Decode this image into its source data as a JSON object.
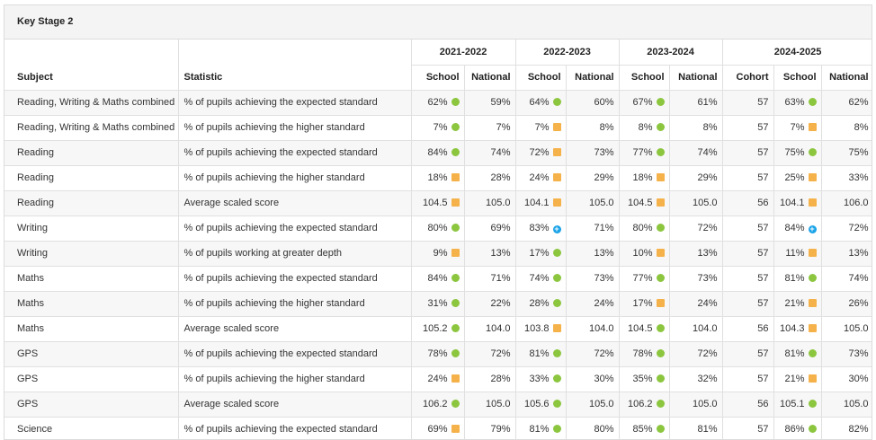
{
  "title": "Key Stage 2",
  "headers": {
    "subject": "Subject",
    "statistic": "Statistic",
    "years": [
      "2021-2022",
      "2022-2023",
      "2023-2024",
      "2024-2025"
    ],
    "school": "School",
    "national": "National",
    "cohort": "Cohort"
  },
  "indicator_colors": {
    "green": "#8cc63f",
    "orange": "#f6b24a",
    "blue": "#1aa3e8"
  },
  "rows": [
    {
      "subject": "Reading, Writing & Maths combined",
      "statistic": "% of pupils achieving the expected standard",
      "y1": {
        "school": "62%",
        "ind": "green",
        "national": "59%"
      },
      "y2": {
        "school": "64%",
        "ind": "green",
        "national": "60%"
      },
      "y3": {
        "school": "67%",
        "ind": "green",
        "national": "61%"
      },
      "y4": {
        "cohort": "57",
        "school": "63%",
        "ind": "green",
        "national": "62%"
      }
    },
    {
      "subject": "Reading, Writing & Maths combined",
      "statistic": "% of pupils achieving the higher standard",
      "y1": {
        "school": "7%",
        "ind": "green",
        "national": "7%"
      },
      "y2": {
        "school": "7%",
        "ind": "orange",
        "national": "8%"
      },
      "y3": {
        "school": "8%",
        "ind": "green",
        "national": "8%"
      },
      "y4": {
        "cohort": "57",
        "school": "7%",
        "ind": "orange",
        "national": "8%"
      }
    },
    {
      "subject": "Reading",
      "statistic": "% of pupils achieving the expected standard",
      "y1": {
        "school": "84%",
        "ind": "green",
        "national": "74%"
      },
      "y2": {
        "school": "72%",
        "ind": "orange",
        "national": "73%"
      },
      "y3": {
        "school": "77%",
        "ind": "green",
        "national": "74%"
      },
      "y4": {
        "cohort": "57",
        "school": "75%",
        "ind": "green",
        "national": "75%"
      }
    },
    {
      "subject": "Reading",
      "statistic": "% of pupils achieving the higher standard",
      "y1": {
        "school": "18%",
        "ind": "orange",
        "national": "28%"
      },
      "y2": {
        "school": "24%",
        "ind": "orange",
        "national": "29%"
      },
      "y3": {
        "school": "18%",
        "ind": "orange",
        "national": "29%"
      },
      "y4": {
        "cohort": "57",
        "school": "25%",
        "ind": "orange",
        "national": "33%"
      }
    },
    {
      "subject": "Reading",
      "statistic": "Average scaled score",
      "y1": {
        "school": "104.5",
        "ind": "orange",
        "national": "105.0"
      },
      "y2": {
        "school": "104.1",
        "ind": "orange",
        "national": "105.0"
      },
      "y3": {
        "school": "104.5",
        "ind": "orange",
        "national": "105.0"
      },
      "y4": {
        "cohort": "56",
        "school": "104.1",
        "ind": "orange",
        "national": "106.0"
      }
    },
    {
      "subject": "Writing",
      "statistic": "% of pupils achieving the expected standard",
      "y1": {
        "school": "80%",
        "ind": "green",
        "national": "69%"
      },
      "y2": {
        "school": "83%",
        "ind": "blue",
        "national": "71%"
      },
      "y3": {
        "school": "80%",
        "ind": "green",
        "national": "72%"
      },
      "y4": {
        "cohort": "57",
        "school": "84%",
        "ind": "blue",
        "national": "72%"
      }
    },
    {
      "subject": "Writing",
      "statistic": "% of pupils working at greater depth",
      "y1": {
        "school": "9%",
        "ind": "orange",
        "national": "13%"
      },
      "y2": {
        "school": "17%",
        "ind": "green",
        "national": "13%"
      },
      "y3": {
        "school": "10%",
        "ind": "orange",
        "national": "13%"
      },
      "y4": {
        "cohort": "57",
        "school": "11%",
        "ind": "orange",
        "national": "13%"
      }
    },
    {
      "subject": "Maths",
      "statistic": "% of pupils achieving the expected standard",
      "y1": {
        "school": "84%",
        "ind": "green",
        "national": "71%"
      },
      "y2": {
        "school": "74%",
        "ind": "green",
        "national": "73%"
      },
      "y3": {
        "school": "77%",
        "ind": "green",
        "national": "73%"
      },
      "y4": {
        "cohort": "57",
        "school": "81%",
        "ind": "green",
        "national": "74%"
      }
    },
    {
      "subject": "Maths",
      "statistic": "% of pupils achieving the higher standard",
      "y1": {
        "school": "31%",
        "ind": "green",
        "national": "22%"
      },
      "y2": {
        "school": "28%",
        "ind": "green",
        "national": "24%"
      },
      "y3": {
        "school": "17%",
        "ind": "orange",
        "national": "24%"
      },
      "y4": {
        "cohort": "57",
        "school": "21%",
        "ind": "orange",
        "national": "26%"
      }
    },
    {
      "subject": "Maths",
      "statistic": "Average scaled score",
      "y1": {
        "school": "105.2",
        "ind": "green",
        "national": "104.0"
      },
      "y2": {
        "school": "103.8",
        "ind": "orange",
        "national": "104.0"
      },
      "y3": {
        "school": "104.5",
        "ind": "green",
        "national": "104.0"
      },
      "y4": {
        "cohort": "56",
        "school": "104.3",
        "ind": "orange",
        "national": "105.0"
      }
    },
    {
      "subject": "GPS",
      "statistic": "% of pupils achieving the expected standard",
      "y1": {
        "school": "78%",
        "ind": "green",
        "national": "72%"
      },
      "y2": {
        "school": "81%",
        "ind": "green",
        "national": "72%"
      },
      "y3": {
        "school": "78%",
        "ind": "green",
        "national": "72%"
      },
      "y4": {
        "cohort": "57",
        "school": "81%",
        "ind": "green",
        "national": "73%"
      }
    },
    {
      "subject": "GPS",
      "statistic": "% of pupils achieving the higher standard",
      "y1": {
        "school": "24%",
        "ind": "orange",
        "national": "28%"
      },
      "y2": {
        "school": "33%",
        "ind": "green",
        "national": "30%"
      },
      "y3": {
        "school": "35%",
        "ind": "green",
        "national": "32%"
      },
      "y4": {
        "cohort": "57",
        "school": "21%",
        "ind": "orange",
        "national": "30%"
      }
    },
    {
      "subject": "GPS",
      "statistic": "Average scaled score",
      "y1": {
        "school": "106.2",
        "ind": "green",
        "national": "105.0"
      },
      "y2": {
        "school": "105.6",
        "ind": "green",
        "national": "105.0"
      },
      "y3": {
        "school": "106.2",
        "ind": "green",
        "national": "105.0"
      },
      "y4": {
        "cohort": "56",
        "school": "105.1",
        "ind": "green",
        "national": "105.0"
      }
    },
    {
      "subject": "Science",
      "statistic": "% of pupils achieving the expected standard",
      "y1": {
        "school": "69%",
        "ind": "orange",
        "national": "79%"
      },
      "y2": {
        "school": "81%",
        "ind": "green",
        "national": "80%"
      },
      "y3": {
        "school": "85%",
        "ind": "green",
        "national": "81%"
      },
      "y4": {
        "cohort": "57",
        "school": "86%",
        "ind": "green",
        "national": "82%"
      }
    }
  ]
}
